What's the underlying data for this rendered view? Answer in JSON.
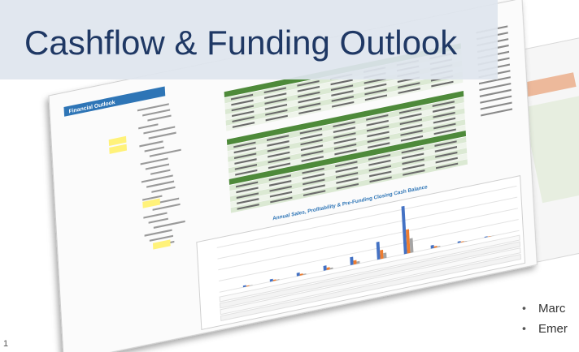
{
  "title": "Cashflow & Funding Outlook",
  "sheet": {
    "header": "Financial Outlook",
    "chart_title": "Annual Sales, Profitability & Pre-Funding Closing Cash Balance"
  },
  "bullets": [
    "Marc",
    "Emer"
  ],
  "page_number": "1"
}
